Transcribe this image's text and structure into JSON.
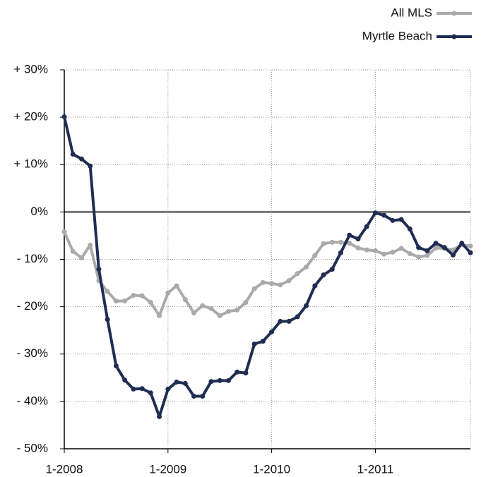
{
  "chart_data": {
    "type": "line",
    "categories": [
      "1-2008",
      null,
      null,
      null,
      null,
      null,
      null,
      null,
      null,
      null,
      null,
      null,
      "1-2009",
      null,
      null,
      null,
      null,
      null,
      null,
      null,
      null,
      null,
      null,
      null,
      "1-2010",
      null,
      null,
      null,
      null,
      null,
      null,
      null,
      null,
      null,
      null,
      null,
      "1-2011",
      null,
      null,
      null,
      null,
      null,
      null,
      null,
      null,
      null,
      null,
      null
    ],
    "series": [
      {
        "name": "All MLS",
        "color": "#aaaaaa",
        "values": [
          -4.2,
          -8.3,
          -9.7,
          -7.0,
          -14.5,
          -16.8,
          -18.8,
          -18.8,
          -17.6,
          -17.7,
          -19.1,
          -21.9,
          -17.1,
          -15.6,
          -18.5,
          -21.3,
          -19.8,
          -20.4,
          -21.9,
          -21.0,
          -20.7,
          -19.1,
          -16.2,
          -14.9,
          -15.1,
          -15.4,
          -14.5,
          -13.0,
          -11.6,
          -9.2,
          -6.7,
          -6.4,
          -6.4,
          -6.6,
          -7.6,
          -8.0,
          -8.2,
          -8.9,
          -8.5,
          -7.7,
          -8.8,
          -9.5,
          -9.2,
          -7.6,
          -7.7,
          -8.0,
          -6.9,
          -7.2
        ]
      },
      {
        "name": "Myrtle Beach",
        "color": "#1f2d52",
        "values": [
          20.1,
          12.2,
          11.2,
          9.7,
          -12.1,
          -22.7,
          -32.5,
          -35.5,
          -37.4,
          -37.3,
          -38.2,
          -43.2,
          -37.4,
          -35.9,
          -36.2,
          -38.9,
          -38.9,
          -35.8,
          -35.6,
          -35.6,
          -33.8,
          -34.0,
          -27.9,
          -27.3,
          -25.3,
          -23.1,
          -23.1,
          -22.1,
          -19.8,
          -15.6,
          -13.3,
          -12.1,
          -8.6,
          -4.9,
          -5.7,
          -3.1,
          -0.2,
          -0.7,
          -1.8,
          -1.6,
          -3.6,
          -7.5,
          -8.2,
          -6.6,
          -7.5,
          -9.1,
          -6.6,
          -8.6
        ]
      }
    ],
    "ylim": [
      -50,
      30
    ],
    "yticks": [
      {
        "value": 30,
        "label": "+ 30%"
      },
      {
        "value": 20,
        "label": "+ 20%"
      },
      {
        "value": 10,
        "label": "+ 10%"
      },
      {
        "value": 0,
        "label": "0%"
      },
      {
        "value": -10,
        "label": "- 10%"
      },
      {
        "value": -20,
        "label": "- 20%"
      },
      {
        "value": -30,
        "label": "- 30%"
      },
      {
        "value": -40,
        "label": "- 40%"
      },
      {
        "value": -50,
        "label": "- 50%"
      }
    ],
    "grid": true,
    "legend": "top-right"
  }
}
